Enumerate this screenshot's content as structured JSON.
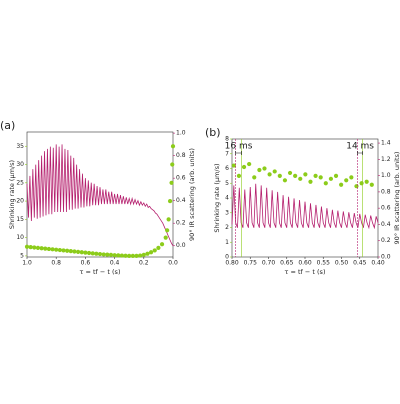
{
  "chart_data": [
    {
      "type": "scatter_line",
      "panel_label": "(a)",
      "xlabel": "τ = tf − t (s)",
      "ylabel": "Shrinking rate (μm/s)",
      "y2label": "90° IR scattering (arb. units)",
      "xlim": [
        1.0,
        0.0
      ],
      "xticks": [
        {
          "value": 1.0,
          "label": "1.0"
        },
        0.8,
        0.6,
        0.4,
        0.2,
        {
          "value": 0.0,
          "label": "0.0"
        }
      ],
      "ylim": [
        4.7,
        38.9
      ],
      "yticks": [
        5,
        10,
        15,
        20,
        25,
        30,
        35
      ],
      "y2lim": [
        -0.1,
        1.01
      ],
      "y2ticks": [
        {
          "value": 0.0,
          "label": "0.0"
        },
        0.2,
        0.4,
        0.6,
        0.8,
        {
          "value": 1.0,
          "label": "1.0"
        }
      ],
      "series": [
        {
          "kind": "points",
          "color": "#8ccc1a",
          "x": [
            1.0,
            0.975,
            0.95,
            0.925,
            0.9,
            0.875,
            0.85,
            0.825,
            0.8,
            0.775,
            0.75,
            0.725,
            0.7,
            0.675,
            0.65,
            0.625,
            0.6,
            0.575,
            0.55,
            0.525,
            0.5,
            0.475,
            0.45,
            0.425,
            0.4,
            0.375,
            0.35,
            0.325,
            0.3,
            0.275,
            0.25,
            0.225,
            0.2,
            0.175,
            0.15,
            0.125,
            0.1,
            0.075,
            0.05,
            0.04,
            0.03,
            0.02,
            0.01,
            0.005,
            0.0
          ],
          "values": [
            7.5,
            7.4,
            7.3,
            7.2,
            7.1,
            7.0,
            6.9,
            6.8,
            6.7,
            6.6,
            6.5,
            6.4,
            6.3,
            6.2,
            6.1,
            6.0,
            5.9,
            5.8,
            5.7,
            5.6,
            5.5,
            5.4,
            5.35,
            5.3,
            5.2,
            5.15,
            5.1,
            5.05,
            5.0,
            5.0,
            5.0,
            5.1,
            5.3,
            5.6,
            6.0,
            6.5,
            7.2,
            8.2,
            10,
            12,
            15,
            20,
            25,
            30,
            35
          ]
        },
        {
          "kind": "line",
          "axis": "y2",
          "color": "#b5206e",
          "x": [
            1.0,
            0.99,
            0.98,
            0.97,
            0.96,
            0.95,
            0.94,
            0.93,
            0.92,
            0.91,
            0.9,
            0.89,
            0.88,
            0.87,
            0.86,
            0.85,
            0.84,
            0.83,
            0.82,
            0.81,
            0.8,
            0.79,
            0.78,
            0.77,
            0.76,
            0.75,
            0.74,
            0.73,
            0.72,
            0.71,
            0.7,
            0.69,
            0.68,
            0.67,
            0.66,
            0.65,
            0.64,
            0.63,
            0.62,
            0.61,
            0.6,
            0.59,
            0.58,
            0.57,
            0.56,
            0.55,
            0.54,
            0.53,
            0.52,
            0.51,
            0.5,
            0.49,
            0.48,
            0.47,
            0.46,
            0.45,
            0.44,
            0.43,
            0.42,
            0.41,
            0.4,
            0.39,
            0.38,
            0.37,
            0.36,
            0.35,
            0.34,
            0.33,
            0.32,
            0.31,
            0.3,
            0.29,
            0.28,
            0.27,
            0.26,
            0.25,
            0.24,
            0.23,
            0.22,
            0.21,
            0.2,
            0.19,
            0.18,
            0.17,
            0.16,
            0.15,
            0.14,
            0.13,
            0.12,
            0.11,
            0.1,
            0.09,
            0.08,
            0.07,
            0.06,
            0.05,
            0.04,
            0.03,
            0.02,
            0.01,
            0.0
          ],
          "values": [
            0.55,
            0.25,
            0.62,
            0.22,
            0.68,
            0.25,
            0.72,
            0.24,
            0.76,
            0.25,
            0.8,
            0.26,
            0.84,
            0.27,
            0.86,
            0.28,
            0.88,
            0.28,
            0.87,
            0.3,
            0.9,
            0.3,
            0.88,
            0.3,
            0.9,
            0.3,
            0.86,
            0.3,
            0.85,
            0.32,
            0.8,
            0.32,
            0.78,
            0.33,
            0.72,
            0.33,
            0.68,
            0.34,
            0.64,
            0.34,
            0.6,
            0.35,
            0.58,
            0.35,
            0.56,
            0.36,
            0.55,
            0.36,
            0.53,
            0.36,
            0.52,
            0.37,
            0.5,
            0.37,
            0.5,
            0.37,
            0.48,
            0.37,
            0.48,
            0.37,
            0.46,
            0.37,
            0.46,
            0.37,
            0.45,
            0.37,
            0.44,
            0.37,
            0.43,
            0.37,
            0.42,
            0.37,
            0.42,
            0.37,
            0.41,
            0.37,
            0.4,
            0.36,
            0.39,
            0.36,
            0.38,
            0.35,
            0.37,
            0.34,
            0.35,
            0.33,
            0.32,
            0.31,
            0.29,
            0.28,
            0.26,
            0.24,
            0.22,
            0.2,
            0.17,
            0.14,
            0.11,
            0.08,
            0.05,
            0.02,
            0.0
          ]
        }
      ]
    },
    {
      "type": "scatter_line",
      "panel_label": "(b)",
      "xlabel": "τ = tf − t (s)",
      "ylabel": "Shrinking rate (μm/s)",
      "y2label": "90° IR scattering (arb. units)",
      "xlim": [
        0.8,
        0.4
      ],
      "xticks": [
        {
          "value": 0.8,
          "label": "0.80"
        },
        0.75,
        {
          "value": 0.7,
          "label": "0.70"
        },
        0.65,
        {
          "value": 0.6,
          "label": "0.60"
        },
        0.55,
        {
          "value": 0.5,
          "label": "0.50"
        },
        0.45,
        {
          "value": 0.4,
          "label": "0.40"
        }
      ],
      "ylim": [
        0,
        8
      ],
      "yticks": [
        0,
        1,
        2,
        3,
        4,
        5,
        6,
        7,
        8
      ],
      "y2lim": [
        0,
        1.45
      ],
      "y2ticks": [
        {
          "value": 0.0,
          "label": "0.0"
        },
        0.2,
        0.4,
        0.6,
        0.8,
        {
          "value": 1.0,
          "label": "1.0"
        },
        1.2,
        1.4
      ],
      "annotations": [
        {
          "text": "16 ms",
          "x": [
            0.79,
            0.774
          ]
        },
        {
          "text": "14 ms",
          "x": [
            0.456,
            0.442
          ]
        }
      ],
      "series": [
        {
          "kind": "points",
          "color": "#8ccc1a",
          "x": [
            0.795,
            0.781,
            0.767,
            0.753,
            0.739,
            0.725,
            0.711,
            0.697,
            0.683,
            0.669,
            0.655,
            0.641,
            0.627,
            0.613,
            0.599,
            0.585,
            0.571,
            0.557,
            0.543,
            0.529,
            0.515,
            0.501,
            0.487,
            0.473,
            0.459,
            0.445,
            0.431,
            0.417
          ],
          "values": [
            6.2,
            5.5,
            6.1,
            6.3,
            5.4,
            5.9,
            6.0,
            5.6,
            5.8,
            5.5,
            5.2,
            5.7,
            5.5,
            5.3,
            5.6,
            5.1,
            5.5,
            5.4,
            5.0,
            5.3,
            5.5,
            4.9,
            5.2,
            5.4,
            4.8,
            5.0,
            5.1,
            4.9
          ]
        },
        {
          "kind": "line",
          "axis": "y2",
          "color": "#b5206e",
          "x": [
            0.8,
            0.795,
            0.79,
            0.785,
            0.78,
            0.775,
            0.77,
            0.765,
            0.76,
            0.755,
            0.75,
            0.745,
            0.74,
            0.735,
            0.73,
            0.725,
            0.72,
            0.715,
            0.71,
            0.705,
            0.7,
            0.695,
            0.69,
            0.685,
            0.68,
            0.675,
            0.67,
            0.665,
            0.66,
            0.655,
            0.65,
            0.645,
            0.64,
            0.635,
            0.63,
            0.625,
            0.62,
            0.615,
            0.61,
            0.605,
            0.6,
            0.595,
            0.59,
            0.585,
            0.58,
            0.575,
            0.57,
            0.565,
            0.56,
            0.555,
            0.55,
            0.545,
            0.54,
            0.535,
            0.53,
            0.525,
            0.52,
            0.515,
            0.51,
            0.505,
            0.5,
            0.495,
            0.49,
            0.485,
            0.48,
            0.475,
            0.47,
            0.465,
            0.46,
            0.455,
            0.45,
            0.445,
            0.44,
            0.435,
            0.43,
            0.425,
            0.42,
            0.415,
            0.41,
            0.405,
            0.4
          ],
          "values": [
            0.4,
            0.88,
            0.42,
            0.36,
            0.85,
            0.42,
            0.36,
            0.83,
            0.42,
            0.36,
            0.86,
            0.42,
            0.36,
            0.9,
            0.42,
            0.36,
            0.88,
            0.42,
            0.36,
            0.85,
            0.42,
            0.36,
            0.82,
            0.42,
            0.36,
            0.8,
            0.42,
            0.36,
            0.76,
            0.42,
            0.36,
            0.74,
            0.42,
            0.36,
            0.72,
            0.42,
            0.36,
            0.7,
            0.42,
            0.36,
            0.68,
            0.42,
            0.36,
            0.66,
            0.42,
            0.36,
            0.64,
            0.42,
            0.36,
            0.62,
            0.42,
            0.36,
            0.6,
            0.42,
            0.36,
            0.58,
            0.42,
            0.36,
            0.57,
            0.42,
            0.36,
            0.56,
            0.42,
            0.36,
            0.55,
            0.42,
            0.36,
            0.54,
            0.42,
            0.36,
            0.53,
            0.42,
            0.36,
            0.52,
            0.42,
            0.36,
            0.51,
            0.42,
            0.36,
            0.5,
            0.42
          ]
        }
      ]
    }
  ]
}
